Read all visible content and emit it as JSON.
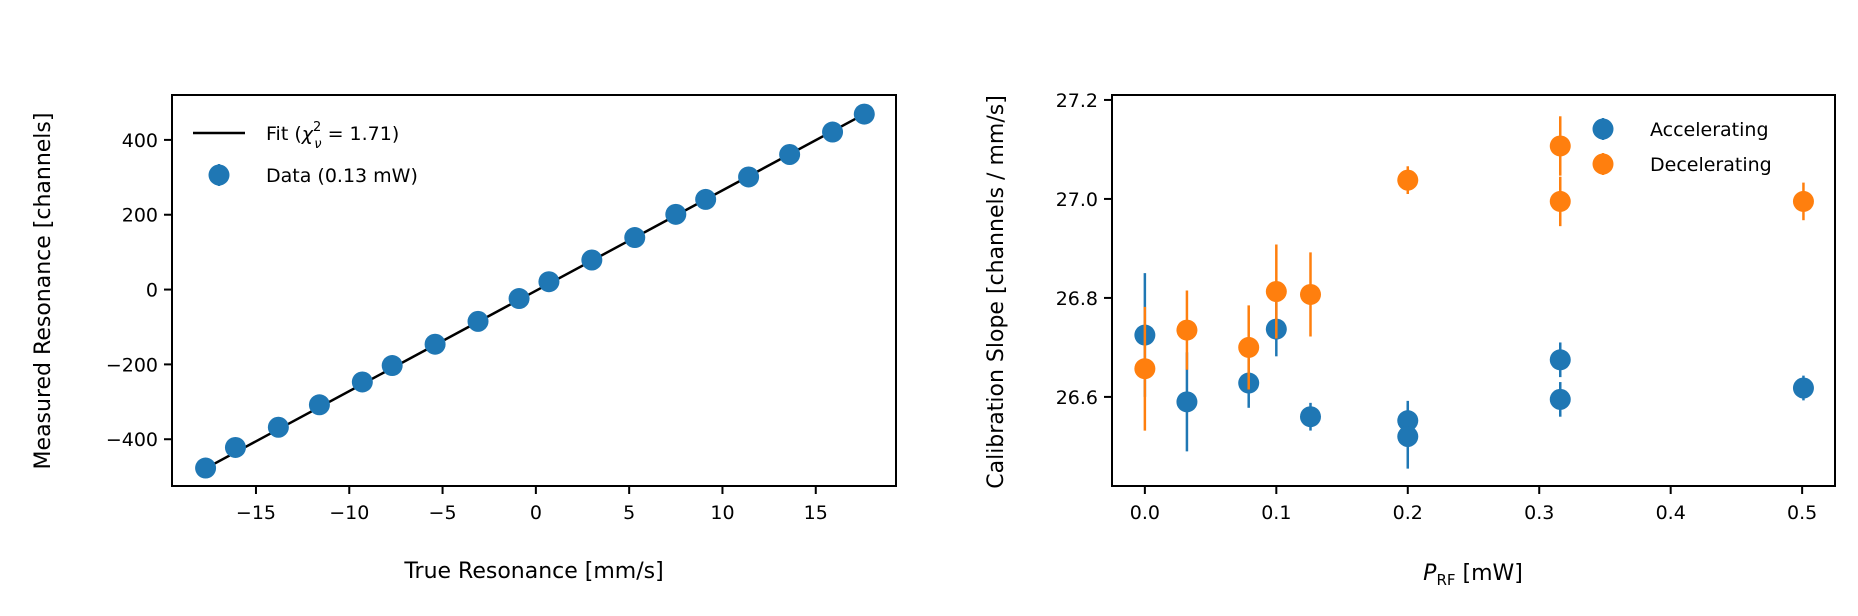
{
  "chart_data": [
    {
      "type": "scatter",
      "xlabel": "True Resonance [mm/s]",
      "ylabel": "Measured Resonance [channels]",
      "xlim": [
        -19.5,
        19.3
      ],
      "ylim": [
        -525,
        520
      ],
      "xticks": [
        -15,
        -10,
        -5,
        0,
        5,
        10,
        15
      ],
      "xtick_labels": [
        "−15",
        "−10",
        "−5",
        "0",
        "5",
        "10",
        "15"
      ],
      "yticks": [
        -400,
        -200,
        0,
        200,
        400
      ],
      "ytick_labels": [
        "−400",
        "−200",
        "0",
        "200",
        "400"
      ],
      "legend_position": "top-left",
      "colors": {
        "data": "#1f77b4",
        "fit": "#000000"
      },
      "series": [
        {
          "name": "Data (0.13 mW)",
          "kind": "points",
          "x": [
            -17.7,
            -16.1,
            -13.8,
            -11.6,
            -9.3,
            -7.7,
            -5.4,
            -3.1,
            -0.9,
            0.7,
            3.0,
            5.3,
            7.5,
            9.1,
            11.4,
            13.6,
            15.9,
            17.6
          ],
          "y": [
            -477,
            -422,
            -368,
            -308,
            -247,
            -203,
            -146,
            -85,
            -24,
            21,
            79,
            139,
            201,
            241,
            301,
            361,
            421,
            469
          ]
        },
        {
          "name": "Fit",
          "name_math": "χ",
          "name_sup": "2",
          "name_sub": "ν",
          "name_value": " = 1.71)",
          "name_prefix": "Fit (",
          "kind": "line",
          "x": [
            -17.7,
            17.6
          ],
          "y": [
            -478,
            469
          ]
        }
      ]
    },
    {
      "type": "scatter",
      "xlabel_main": "P",
      "xlabel_sub": "RF",
      "xlabel_rest": " [mW]",
      "ylabel": "Calibration Slope [channels / mm/s]",
      "xlim": [
        -0.025,
        0.525
      ],
      "ylim": [
        26.42,
        27.21
      ],
      "xticks": [
        0.0,
        0.1,
        0.2,
        0.3,
        0.4,
        0.5
      ],
      "xtick_labels": [
        "0.0",
        "0.1",
        "0.2",
        "0.3",
        "0.4",
        "0.5"
      ],
      "yticks": [
        26.6,
        26.8,
        27.0,
        27.2
      ],
      "ytick_labels": [
        "26.6",
        "26.8",
        "27.0",
        "27.2"
      ],
      "legend_position": "top-right",
      "series": [
        {
          "name": "Accelerating",
          "color": "#1f77b4",
          "x": [
            0.0,
            0.032,
            0.079,
            0.1,
            0.126,
            0.2,
            0.2,
            0.316,
            0.316,
            0.501
          ],
          "y": [
            26.725,
            26.59,
            26.628,
            26.737,
            26.56,
            26.552,
            26.52,
            26.675,
            26.595,
            26.618
          ],
          "err": [
            0.125,
            0.1,
            0.05,
            0.055,
            0.028,
            0.04,
            0.065,
            0.035,
            0.035,
            0.025
          ]
        },
        {
          "name": "Decelerating",
          "color": "#ff7f0e",
          "x": [
            0.0,
            0.032,
            0.079,
            0.1,
            0.126,
            0.2,
            0.316,
            0.316,
            0.501
          ],
          "y": [
            26.657,
            26.735,
            26.7,
            26.813,
            26.807,
            27.038,
            27.107,
            26.995,
            26.995
          ],
          "err": [
            0.125,
            0.08,
            0.085,
            0.095,
            0.085,
            0.028,
            0.06,
            0.05,
            0.038
          ]
        }
      ]
    }
  ]
}
